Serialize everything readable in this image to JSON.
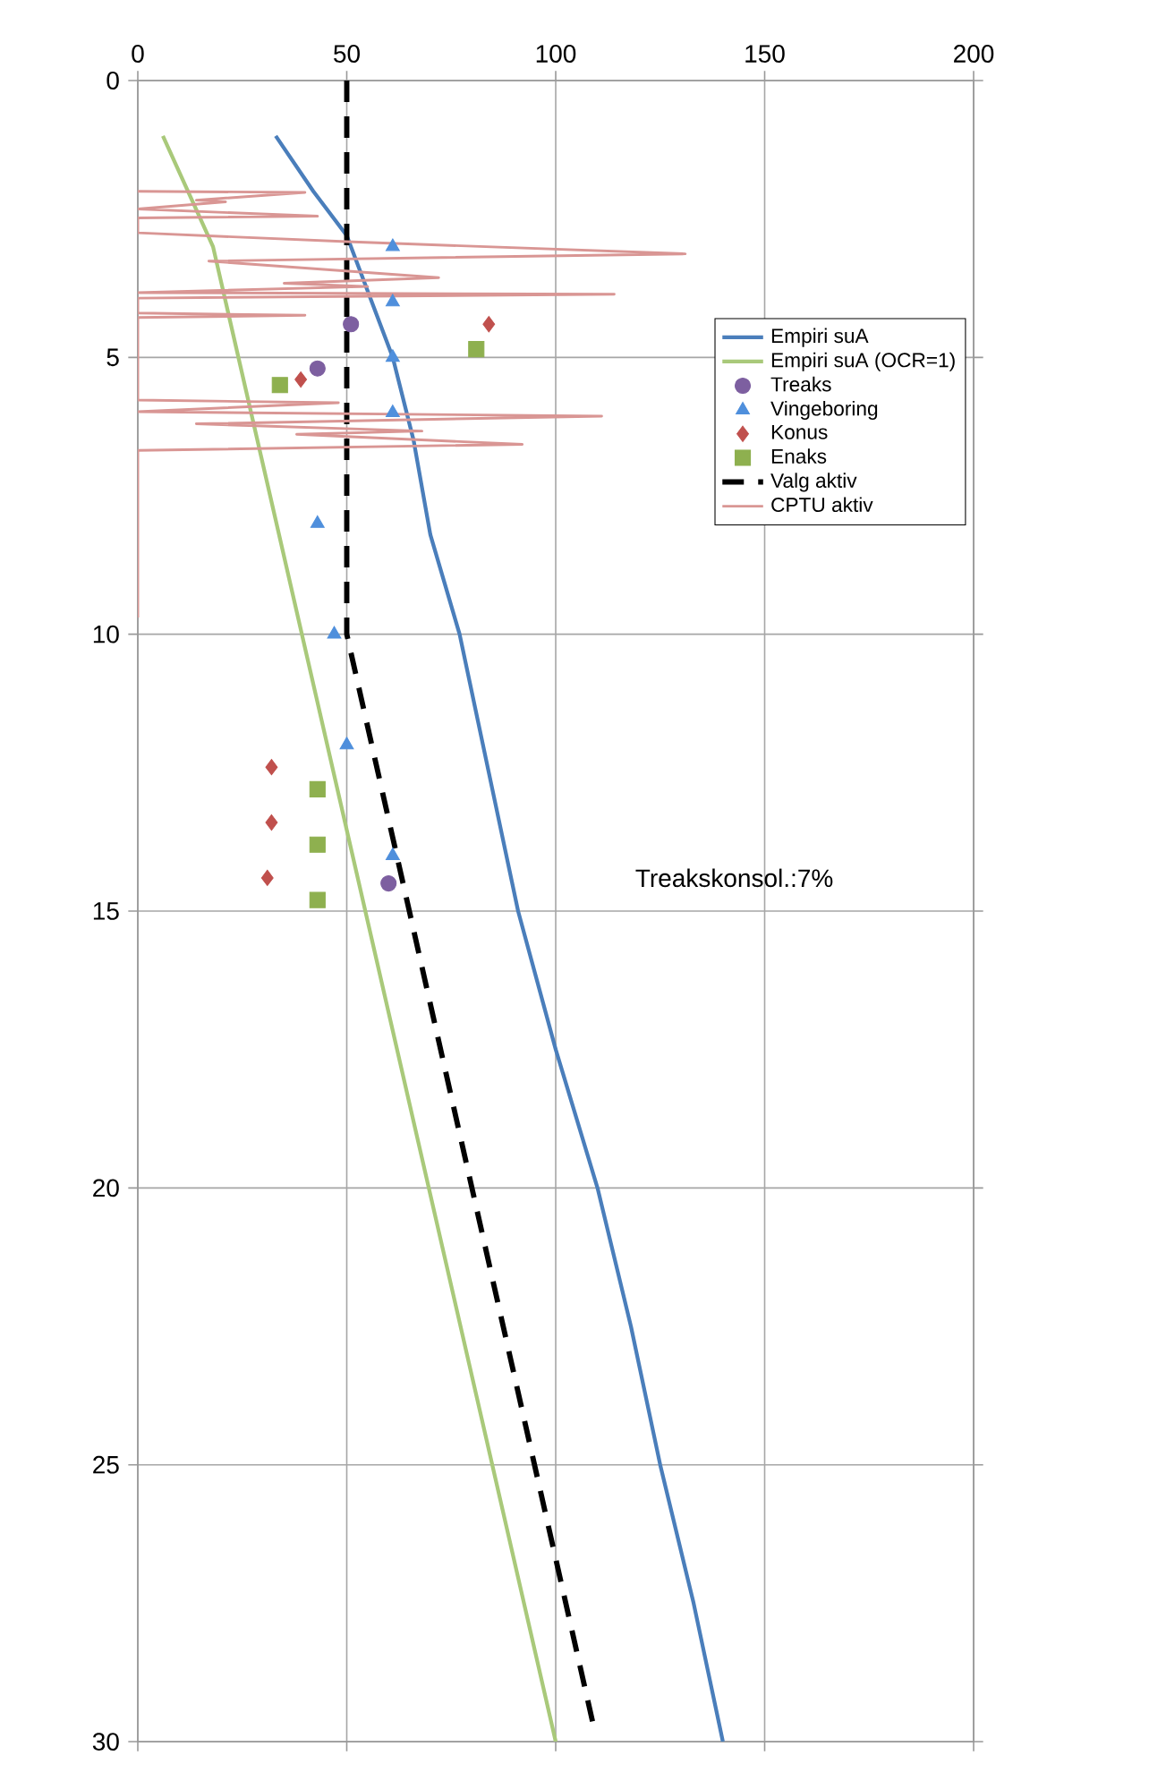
{
  "chart_data": {
    "type": "line",
    "xlim": [
      0,
      200
    ],
    "ylim": [
      30,
      0
    ],
    "xticks": [
      0,
      50,
      100,
      150,
      200
    ],
    "yticks": [
      0,
      5,
      10,
      15,
      20,
      25,
      30
    ],
    "grid": true,
    "legend": "right",
    "annotations": [
      "Treakskonsol.:7%"
    ],
    "series": [
      {
        "name": "Empiri suA",
        "color": "#4a7ebb",
        "marker": "none",
        "line_style": "solid",
        "x": [
          33,
          42,
          50,
          56,
          61,
          66,
          70,
          77,
          84,
          91,
          100,
          110,
          118,
          125,
          133,
          140
        ],
        "values": [
          1,
          2,
          2.8,
          4,
          5,
          6.5,
          8.2,
          10,
          12.5,
          15,
          17.5,
          20,
          22.5,
          25,
          27.5,
          30
        ]
      },
      {
        "name": "Empiri suA (OCR=1)",
        "color": "#a9c97a",
        "marker": "none",
        "line_style": "solid",
        "x": [
          6,
          12,
          18,
          100
        ],
        "values": [
          1,
          2,
          3,
          30
        ]
      },
      {
        "name": "Treaks",
        "type": "scatter",
        "color": "#7d5fa0",
        "marker": "circle",
        "x": [
          51,
          43,
          60
        ],
        "values": [
          4.4,
          5.2,
          14.5
        ]
      },
      {
        "name": "Vingeboring",
        "type": "scatter",
        "color": "#4f8fdc",
        "marker": "triangle",
        "x": [
          61,
          61,
          61,
          61,
          43,
          47,
          50,
          61
        ],
        "values": [
          3,
          4,
          5,
          6,
          8,
          10,
          12,
          14
        ]
      },
      {
        "name": "Konus",
        "type": "scatter",
        "color": "#c0504d",
        "marker": "diamond",
        "x": [
          84,
          39,
          32,
          32,
          31
        ],
        "values": [
          4.4,
          5.4,
          12.4,
          13.4,
          14.4
        ]
      },
      {
        "name": "Enaks",
        "type": "scatter",
        "color": "#8eb04f",
        "marker": "square",
        "x": [
          81,
          34,
          43,
          43,
          43
        ],
        "values": [
          4.85,
          5.5,
          12.8,
          13.8,
          14.8
        ]
      },
      {
        "name": "Valg aktiv",
        "color": "#000000",
        "marker": "none",
        "line_style": "dashed",
        "x": [
          50,
          50,
          109
        ],
        "values": [
          0,
          10,
          29.7
        ]
      },
      {
        "name": "CPTU aktiv",
        "color": "#d99694",
        "marker": "none",
        "line_style": "solid",
        "x": [
          0,
          40,
          14,
          21,
          0,
          43,
          0,
          0,
          50,
          131,
          17,
          72,
          35,
          55,
          0,
          114,
          0,
          0,
          40,
          0,
          0,
          48,
          0,
          111,
          14,
          68,
          38,
          92,
          0,
          0
        ],
        "values": [
          2,
          2.02,
          2.16,
          2.19,
          2.32,
          2.45,
          2.48,
          2.75,
          2.91,
          3.13,
          3.26,
          3.56,
          3.66,
          3.72,
          3.83,
          3.86,
          3.93,
          4.2,
          4.24,
          4.28,
          5.77,
          5.82,
          5.98,
          6.06,
          6.2,
          6.33,
          6.39,
          6.57,
          6.68,
          9.7
        ]
      }
    ]
  }
}
